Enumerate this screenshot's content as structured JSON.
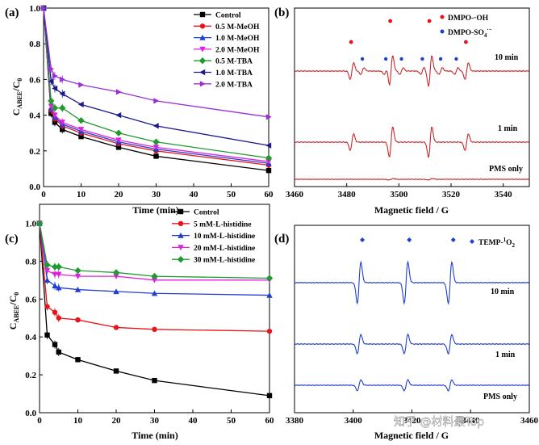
{
  "watermark": "知乎 @材料最Top",
  "chart_data": [
    {
      "panel": "(a)",
      "type": "line",
      "xlabel": "Time (min)",
      "ylabel": "C_ABEE/C_0",
      "ylabel_main": "C",
      "ylabel_sub": "ABEE",
      "ylabel_rest": "/C",
      "ylabel_sub0": "0",
      "xlim": [
        0,
        60
      ],
      "ylim": [
        0,
        1.0
      ],
      "xticks": [
        "0",
        "10",
        "20",
        "30",
        "40",
        "50",
        "60"
      ],
      "yticks": [
        "0.0",
        "0.2",
        "0.4",
        "0.6",
        "0.8",
        "1.0"
      ],
      "x": [
        0,
        2,
        3,
        5,
        10,
        20,
        30,
        60
      ],
      "series": [
        {
          "name": "Control",
          "color": "#000000",
          "marker": "square",
          "values": [
            1.0,
            0.41,
            0.36,
            0.32,
            0.28,
            0.22,
            0.17,
            0.09
          ]
        },
        {
          "name": "0.5 M-MeOH",
          "color": "#e8141c",
          "marker": "circle",
          "values": [
            1.0,
            0.43,
            0.38,
            0.34,
            0.3,
            0.24,
            0.2,
            0.12
          ]
        },
        {
          "name": "1.0 M-MeOH",
          "color": "#1f3fd0",
          "marker": "triangle",
          "values": [
            1.0,
            0.44,
            0.39,
            0.35,
            0.31,
            0.25,
            0.21,
            0.13
          ]
        },
        {
          "name": "2.0 M-MeOH",
          "color": "#e020e0",
          "marker": "triangle-down",
          "values": [
            1.0,
            0.45,
            0.4,
            0.36,
            0.32,
            0.26,
            0.22,
            0.14
          ]
        },
        {
          "name": "0.5 M-TBA",
          "color": "#1f9a2e",
          "marker": "diamond",
          "values": [
            1.0,
            0.48,
            0.44,
            0.44,
            0.37,
            0.3,
            0.25,
            0.16
          ]
        },
        {
          "name": "1.0 M-TBA",
          "color": "#1a1a8c",
          "marker": "triangle-left",
          "values": [
            1.0,
            0.59,
            0.55,
            0.52,
            0.46,
            0.4,
            0.34,
            0.23
          ]
        },
        {
          "name": "2.0 M-TBA",
          "color": "#9b2fd6",
          "marker": "triangle-right",
          "values": [
            1.0,
            0.66,
            0.62,
            0.6,
            0.57,
            0.53,
            0.48,
            0.39
          ]
        }
      ]
    },
    {
      "panel": "(b)",
      "type": "line",
      "xlabel": "Magnetic field / G",
      "xlim": [
        3460,
        3550
      ],
      "xticks": [
        "3460",
        "3480",
        "3500",
        "3520",
        "3540"
      ],
      "legend": [
        {
          "label": "DMPO-·OH",
          "color": "#e8141c"
        },
        {
          "label": "DMPO-SO4·−",
          "color": "#1f3fd0"
        }
      ],
      "legend_oh": "DMPO-·OH",
      "legend_so4_main": "DMPO-SO",
      "legend_so4_sub": "4",
      "legend_so4_sup": "·−",
      "trace_color": "#c8282a",
      "traces": [
        {
          "label": "10 min",
          "oh_peaks_G": [
            3482,
            3497,
            3512,
            3526
          ],
          "so4_peaks_G": [
            3486,
            3495,
            3501,
            3509,
            3516,
            3522
          ]
        },
        {
          "label": "1 min",
          "oh_peaks_G": [
            3482,
            3497,
            3512,
            3526
          ]
        },
        {
          "label": "PMS only"
        }
      ]
    },
    {
      "panel": "(c)",
      "type": "line",
      "xlabel": "Time (min)",
      "ylabel": "C_ABEE/C_0",
      "ylabel_main": "C",
      "ylabel_sub": "ABEE",
      "ylabel_rest": "/C",
      "ylabel_sub0": "0",
      "xlim": [
        0,
        60
      ],
      "ylim": [
        0,
        1.1
      ],
      "xticks": [
        "0",
        "10",
        "20",
        "30",
        "40",
        "50",
        "60"
      ],
      "yticks": [
        "0.0",
        "0.2",
        "0.4",
        "0.6",
        "0.8",
        "1.0"
      ],
      "x": [
        0,
        2,
        4,
        5,
        10,
        20,
        30,
        60
      ],
      "series": [
        {
          "name": "Control",
          "color": "#000000",
          "marker": "square",
          "values": [
            1.0,
            0.41,
            0.36,
            0.32,
            0.28,
            0.22,
            0.17,
            0.09
          ]
        },
        {
          "name": "5  mM-L-histidine",
          "color": "#e8141c",
          "marker": "circle",
          "values": [
            1.0,
            0.56,
            0.53,
            0.5,
            0.49,
            0.45,
            0.44,
            0.43
          ]
        },
        {
          "name": "10 mM-L-histidine",
          "color": "#1f3fd0",
          "marker": "triangle",
          "values": [
            1.0,
            0.7,
            0.67,
            0.66,
            0.65,
            0.64,
            0.63,
            0.62
          ]
        },
        {
          "name": "20 mM-L-histidine",
          "color": "#e020e0",
          "marker": "triangle-down",
          "values": [
            1.0,
            0.75,
            0.73,
            0.73,
            0.72,
            0.72,
            0.7,
            0.7
          ]
        },
        {
          "name": "30 mM-L-histidine",
          "color": "#1f9a2e",
          "marker": "diamond",
          "values": [
            1.0,
            0.78,
            0.77,
            0.77,
            0.75,
            0.74,
            0.72,
            0.71
          ]
        }
      ]
    },
    {
      "panel": "(d)",
      "type": "line",
      "xlabel": "Magnetic field / G",
      "xlim": [
        3380,
        3460
      ],
      "xticks": [
        "3380",
        "3400",
        "3420",
        "3440",
        "3460"
      ],
      "legend": [
        {
          "label": "TEMP-1O2",
          "color": "#1f3fd0"
        }
      ],
      "legend_main": "TEMP-",
      "legend_sup": "1",
      "legend_rest": "O",
      "legend_sub": "2",
      "trace_color": "#1f3fd0",
      "traces": [
        {
          "label": "10 min",
          "peaks_G": [
            3402,
            3418,
            3433
          ]
        },
        {
          "label": "1 min",
          "peaks_G": [
            3402,
            3418,
            3433
          ]
        },
        {
          "label": "PMS only",
          "peaks_G": [
            3402,
            3418,
            3433
          ]
        }
      ]
    }
  ]
}
